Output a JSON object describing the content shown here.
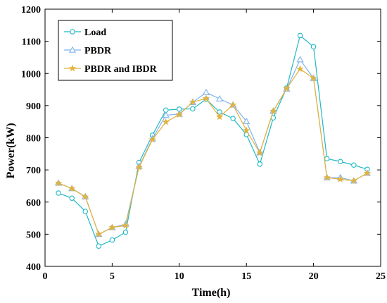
{
  "chart_data": {
    "type": "line",
    "xlabel": "Time(h)",
    "ylabel": "Power(kW)",
    "xlim": [
      0,
      25
    ],
    "ylim": [
      400,
      1200
    ],
    "xticks": [
      0,
      5,
      10,
      15,
      20,
      25
    ],
    "yticks": [
      400,
      500,
      600,
      700,
      800,
      900,
      1000,
      1100,
      1200
    ],
    "grid": false,
    "legend_position": "top-left",
    "x": [
      1,
      2,
      3,
      4,
      5,
      6,
      7,
      8,
      9,
      10,
      11,
      12,
      13,
      14,
      15,
      16,
      17,
      18,
      19,
      20,
      21,
      22,
      23,
      24
    ],
    "series": [
      {
        "name": "Load",
        "color": "#1fb8c4",
        "marker": "circle",
        "values": [
          628,
          612,
          571,
          463,
          482,
          506,
          723,
          808,
          886,
          889,
          890,
          920,
          880,
          860,
          810,
          718,
          862,
          955,
          1118,
          1083,
          735,
          726,
          715,
          702
        ]
      },
      {
        "name": "PBDR",
        "color": "#7fb4f0",
        "marker": "triangle",
        "values": [
          659,
          642,
          617,
          500,
          521,
          531,
          711,
          797,
          870,
          874,
          910,
          941,
          921,
          902,
          851,
          754,
          883,
          952,
          1043,
          985,
          676,
          676,
          666,
          690
        ]
      },
      {
        "name": "PBDR and IBDR",
        "color": "#e3b23c",
        "marker": "star",
        "values": [
          659,
          642,
          616,
          500,
          521,
          527,
          708,
          794,
          849,
          872,
          911,
          922,
          865,
          902,
          823,
          753,
          883,
          953,
          1014,
          985,
          676,
          671,
          666,
          690
        ]
      }
    ]
  }
}
